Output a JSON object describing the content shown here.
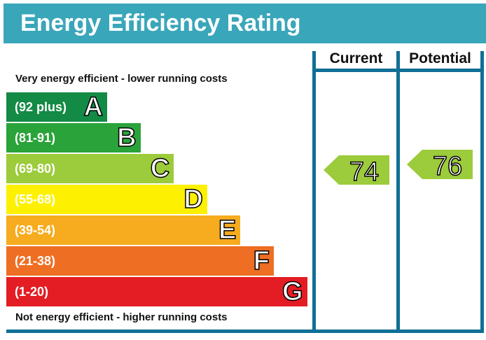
{
  "chart_data": {
    "type": "bar",
    "title": "Energy Efficiency Rating",
    "top_note": "Very energy efficient - lower running costs",
    "bottom_note": "Not energy efficient - higher running costs",
    "columns": [
      "Current",
      "Potential"
    ],
    "bands": [
      {
        "range": "(92 plus)",
        "letter": "A",
        "color": "#138a45"
      },
      {
        "range": "(81-91)",
        "letter": "B",
        "color": "#2aa33a"
      },
      {
        "range": "(69-80)",
        "letter": "C",
        "color": "#9ccb3b"
      },
      {
        "range": "(55-68)",
        "letter": "D",
        "color": "#fdf000"
      },
      {
        "range": "(39-54)",
        "letter": "E",
        "color": "#f6ac1e"
      },
      {
        "range": "(21-38)",
        "letter": "F",
        "color": "#ee6e23"
      },
      {
        "range": "(1-20)",
        "letter": "G",
        "color": "#e31d23"
      }
    ],
    "current": {
      "value": "74",
      "band": "C",
      "color": "#9ccb3b"
    },
    "potential": {
      "value": "76",
      "band": "C",
      "color": "#9ccb3b"
    }
  }
}
